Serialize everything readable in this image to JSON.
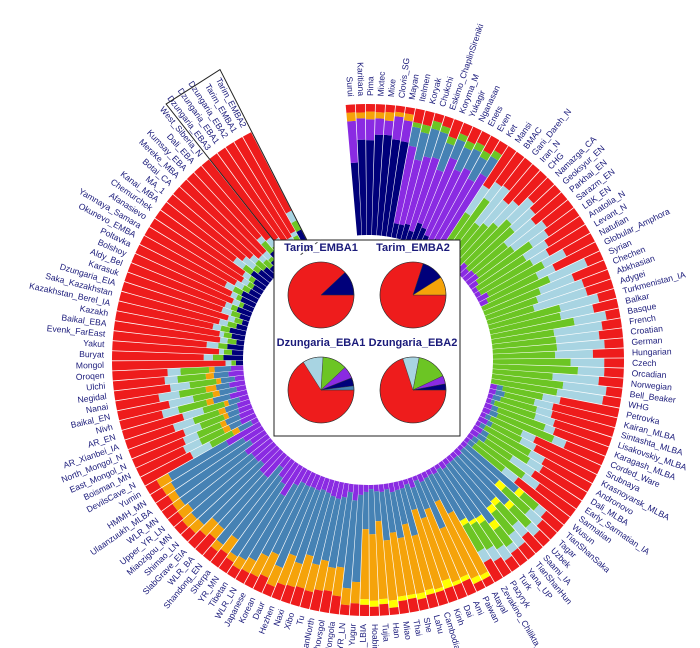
{
  "chart_data": {
    "type": "circular-stacked-bar",
    "title": "",
    "component_colors": {
      "red": "#ee1c1c",
      "navy": "#00007a",
      "purple": "#8a2be2",
      "orange": "#f5a30a",
      "green": "#6cc524",
      "lightblue": "#a8d4e2",
      "steelblue": "#4682b4",
      "yellow": "#ffff00"
    },
    "boxed_labels": [
      "Tarim_EMBA1",
      "Tarim_EMBA2",
      "Dzungaria_EBA1",
      "Dzungaria_EBA2"
    ],
    "populations": [
      "Surui",
      "Karitiana",
      "Pima",
      "Mixtec",
      "Mixe",
      "Clovis_SG",
      "Mayan",
      "Itelmen",
      "Koryak",
      "Chukchi",
      "Eskimo_ChaplinSireniki",
      "Koryma_M",
      "Yukagir",
      "Nganasan",
      "Enets",
      "Even",
      "Ket",
      "Mansi",
      "BMAC",
      "Gani_Dareh_N",
      "Iran_N",
      "CHG",
      "Namazga_CA",
      "Geoksyur_EN",
      "Parkhai_EN",
      "Sarazm_EN",
      "LBK_EN",
      "Anatolia_N",
      "Levant_N",
      "Natufian",
      "Globular_Amphora",
      "Syrian",
      "Chechen",
      "Abkhasian",
      "Adygei",
      "Turkmenistan_IA",
      "Balkar",
      "Basque",
      "French",
      "Croatian",
      "German",
      "Hungarian",
      "Czech",
      "Orcadian",
      "Norwegian",
      "Bell_Beaker",
      "WHG",
      "Petrovka",
      "Kairan_MLBA",
      "Sintashta_MLBA",
      "Lisakovskiy_MLBA",
      "Karagash_MLBA",
      "Corded_Ware",
      "Srubnaya",
      "Krasnoyarsk_MLBA",
      "Andronovo",
      "Dali_MLBA",
      "Early_Sarmatian_IA",
      "Sarmatian",
      "Wusun",
      "TianShanSaka",
      "Tagar",
      "Uzbek",
      "Saami_IA",
      "TianShanHun",
      "Yana_UP",
      "Turk",
      "Pazyryk",
      "Zevakino_Chilikta_IA",
      "Atayal",
      "Paiwan",
      "Ami",
      "Dai",
      "Kinh",
      "Cambodian",
      "Lahu",
      "She",
      "Thai",
      "Miao",
      "Han",
      "Tujia",
      "Hoabinhian",
      "YR_LBIA",
      "Yugur",
      "YR_LN",
      "Mongola",
      "Khovsgol",
      "HanNorth",
      "Tu",
      "Xibo",
      "Naxi",
      "Hezhen",
      "Daur",
      "Korean",
      "Japanese",
      "WLR_LN",
      "Tibetan",
      "YR_MN",
      "Sherpa",
      "Shandong_EN",
      "WLR_BA",
      "SlabGrave_EIA",
      "Shimao_LN",
      "Miaozigou_MN",
      "Upper_YR_LN",
      "WLR_MN",
      "Ulaanzuukh_MLBA",
      "HMMH_MN",
      "Yumin",
      "DevilsCave_N",
      "Boisman_MN",
      "East_Mongol_N",
      "North_Mongol_N",
      "AR_Xianbei_IA",
      "AR_EN",
      "Nivh",
      "Baikal_EN",
      "Nanai",
      "Negidal",
      "Ulchi",
      "Oroqen",
      "Mongol",
      "Buryat",
      "Yakut",
      "Evenk_FarEast",
      "Baikal_EBA",
      "Kazakh",
      "Kazakhstan_Berel_IA",
      "Saka_Kazakhstan",
      "Dzungaria_EIA",
      "Karasuk",
      "Aldy_Bel",
      "Bolshoy",
      "Poltavka",
      "Okunevo_EMBA",
      "Yamnaya_Samara",
      "Afanasievo",
      "Chemurchek",
      "Kanai_MBA",
      "MA_1",
      "Botai_CA",
      "Mereke_MBA",
      "Kumsay_EBA",
      "Dali_EBA",
      "West_Siberia_N",
      "Dzungaria_EBA3",
      "Dzungaria_EBA1",
      "Dzungaria_EBA2",
      "Tarim_EMBA1",
      "Tarim_EMBA2"
    ],
    "pies": [
      {
        "name": "Tarim_EMBA1",
        "slices": [
          {
            "component": "red",
            "value": 0.88
          },
          {
            "component": "navy",
            "value": 0.12
          }
        ]
      },
      {
        "name": "Tarim_EMBA2",
        "slices": [
          {
            "component": "red",
            "value": 0.8
          },
          {
            "component": "navy",
            "value": 0.11
          },
          {
            "component": "orange",
            "value": 0.09
          }
        ]
      },
      {
        "name": "Dzungaria_EBA1",
        "slices": [
          {
            "component": "red",
            "value": 0.66
          },
          {
            "component": "lightblue",
            "value": 0.1
          },
          {
            "component": "green",
            "value": 0.12
          },
          {
            "component": "purple",
            "value": 0.06
          },
          {
            "component": "navy",
            "value": 0.04
          },
          {
            "component": "steelblue",
            "value": 0.02
          }
        ]
      },
      {
        "name": "Dzungaria_EBA2",
        "slices": [
          {
            "component": "red",
            "value": 0.7
          },
          {
            "component": "lightblue",
            "value": 0.08
          },
          {
            "component": "green",
            "value": 0.15
          },
          {
            "component": "purple",
            "value": 0.04
          },
          {
            "component": "navy",
            "value": 0.03
          }
        ]
      }
    ]
  }
}
